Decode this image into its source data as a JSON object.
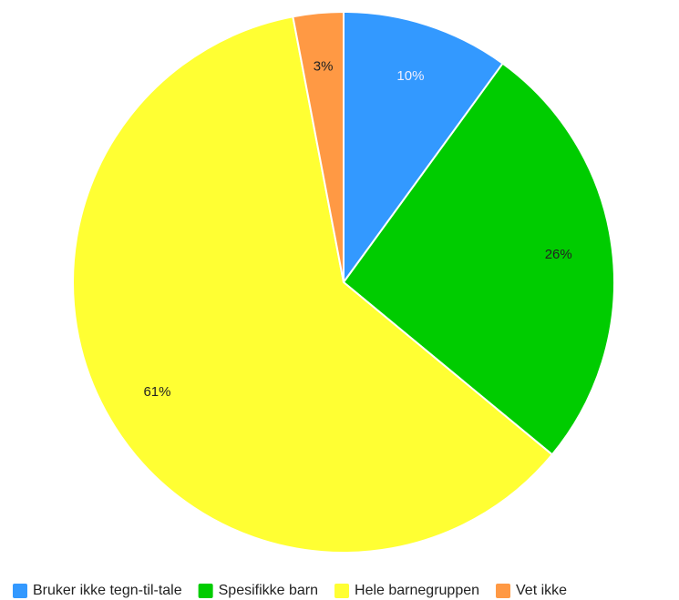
{
  "chart_data": {
    "type": "pie",
    "categories": [
      "Bruker ikke tegn-til-tale",
      "Spesifikke barn",
      "Hele barnegruppen",
      "Vet ikke"
    ],
    "values": [
      10,
      26,
      61,
      3
    ],
    "value_labels": [
      "10%",
      "26%",
      "61%",
      "3%"
    ],
    "colors": [
      "#3399ff",
      "#00cc00",
      "#ffff33",
      "#ff9944"
    ],
    "legend": "bottom"
  }
}
